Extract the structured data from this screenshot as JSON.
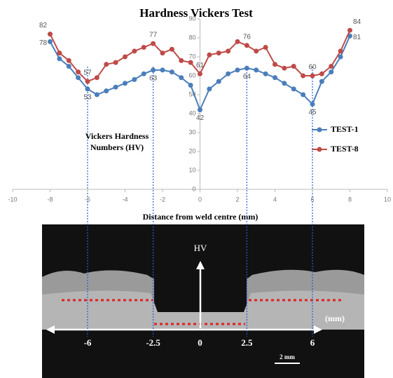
{
  "chart_data": {
    "type": "line",
    "title": "Hardness Vickers Test",
    "x_label": "Distance from weld centre (mm)",
    "y_label": "Vickers Hardness Numbers (HV)",
    "x": [
      -8,
      -7.5,
      -7,
      -6.5,
      -6,
      -5.5,
      -5,
      -4.5,
      -4,
      -3.5,
      -3,
      -2.5,
      -2,
      -1.5,
      -1,
      -0.5,
      0,
      0.5,
      1,
      1.5,
      2,
      2.5,
      3,
      3.5,
      4,
      4.5,
      5,
      5.5,
      6,
      6.5,
      7,
      7.5,
      8
    ],
    "series": [
      {
        "name": "TEST-1",
        "color": "#4a7ebb",
        "values": [
          78,
          69,
          65,
          59,
          53,
          50,
          52,
          54,
          56,
          58,
          61,
          63,
          63,
          62,
          59,
          55,
          42,
          53,
          57,
          61,
          63,
          64,
          63,
          61,
          59,
          56,
          53,
          50,
          45,
          57,
          62,
          70,
          81
        ],
        "value_labels": [
          "78",
          null,
          null,
          null,
          "53",
          null,
          null,
          null,
          null,
          null,
          null,
          "63",
          null,
          null,
          null,
          null,
          "42",
          null,
          null,
          null,
          null,
          "64",
          null,
          null,
          null,
          null,
          null,
          null,
          "45",
          null,
          null,
          null,
          "81"
        ]
      },
      {
        "name": "TEST-8",
        "color": "#be4b48",
        "values": [
          82,
          72,
          68,
          62,
          57,
          59,
          66,
          67,
          70,
          73,
          75,
          77,
          72,
          74,
          68,
          67,
          61,
          71,
          72,
          73,
          78,
          76,
          73,
          75,
          66,
          64,
          65,
          60,
          60,
          61,
          65,
          73,
          84
        ],
        "value_labels": [
          "82",
          null,
          null,
          null,
          "57",
          null,
          null,
          null,
          null,
          null,
          null,
          "77",
          null,
          null,
          null,
          null,
          "61",
          null,
          null,
          null,
          null,
          "76",
          null,
          null,
          null,
          null,
          null,
          null,
          "60",
          null,
          null,
          null,
          "84"
        ]
      }
    ],
    "xlim": [
      -10,
      10
    ],
    "xticks": [
      -10,
      -8,
      -6,
      -4,
      -2,
      0,
      2,
      4,
      6,
      8,
      10
    ],
    "ylim": [
      0,
      90
    ],
    "yticks": [
      0,
      10,
      20,
      30,
      40,
      50,
      60,
      70,
      80,
      90
    ],
    "legend": "right",
    "guides": [
      -6,
      -2.5,
      2.5,
      6
    ]
  },
  "micrograph": {
    "axis_label": "HV",
    "unit": "(mm)",
    "ticks": [
      -6,
      -2.5,
      0,
      2.5,
      6
    ],
    "scale_bar": "2 mm"
  }
}
